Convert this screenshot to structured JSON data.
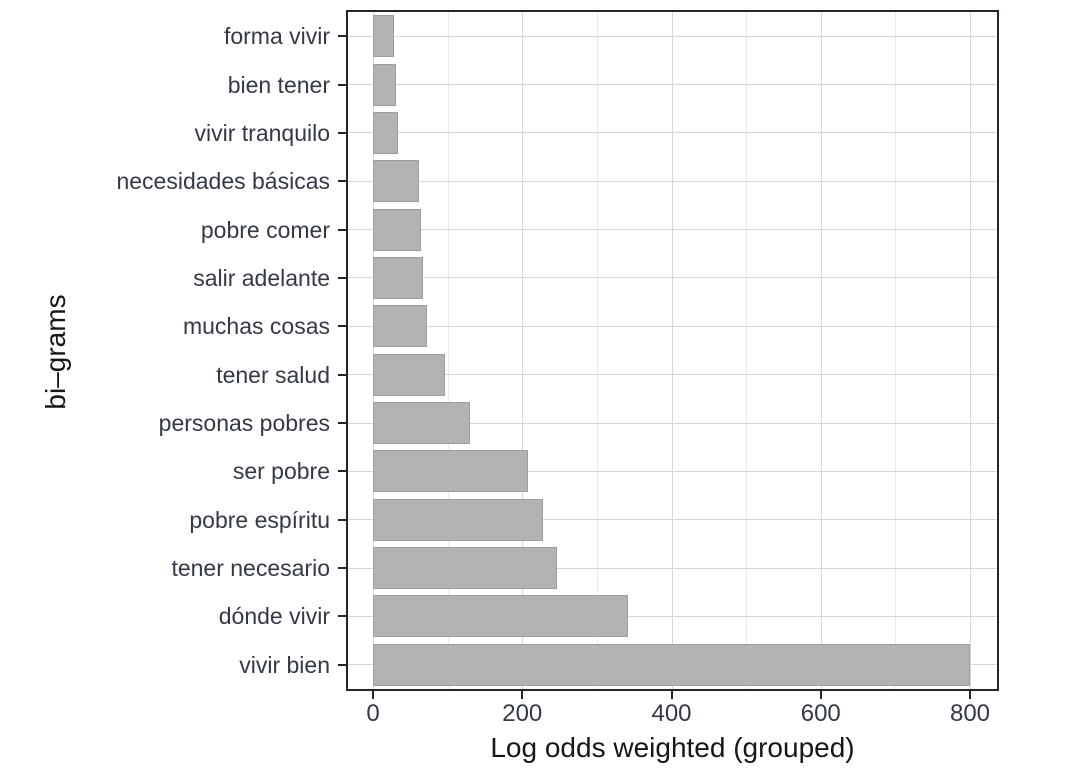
{
  "figure": {
    "background_color": "#ffffff",
    "panel_border_color": "#22262d",
    "axis_text_color": "#333945",
    "axis_title_color": "#14171c"
  },
  "chart_data": {
    "type": "bar",
    "orientation": "horizontal",
    "title": "",
    "xlabel": "Log odds weighted (grouped)",
    "ylabel": "bi–grams",
    "categories": [
      "forma vivir",
      "bien tener",
      "vivir tranquilo",
      "necesidades básicas",
      "pobre comer",
      "salir adelante",
      "muchas cosas",
      "tener salud",
      "personas pobres",
      "ser pobre",
      "pobre espíritu",
      "tener necesario",
      "dónde vivir",
      "vivir bien"
    ],
    "values": [
      28,
      31,
      34,
      62,
      64,
      67,
      73,
      96,
      130,
      208,
      228,
      246,
      342,
      800
    ],
    "x_ticks": [
      0,
      200,
      400,
      600,
      800
    ],
    "x_minor_gridlines": [
      100,
      300,
      500,
      700
    ],
    "xlim": [
      -35,
      840
    ],
    "grid": true,
    "legend_position": "none",
    "bar_color": "#b1b3b4",
    "bar_border_color": "#9c9ea0",
    "grid_major_color": "#d7d7d7",
    "grid_minor_color": "#e9e9e9"
  }
}
